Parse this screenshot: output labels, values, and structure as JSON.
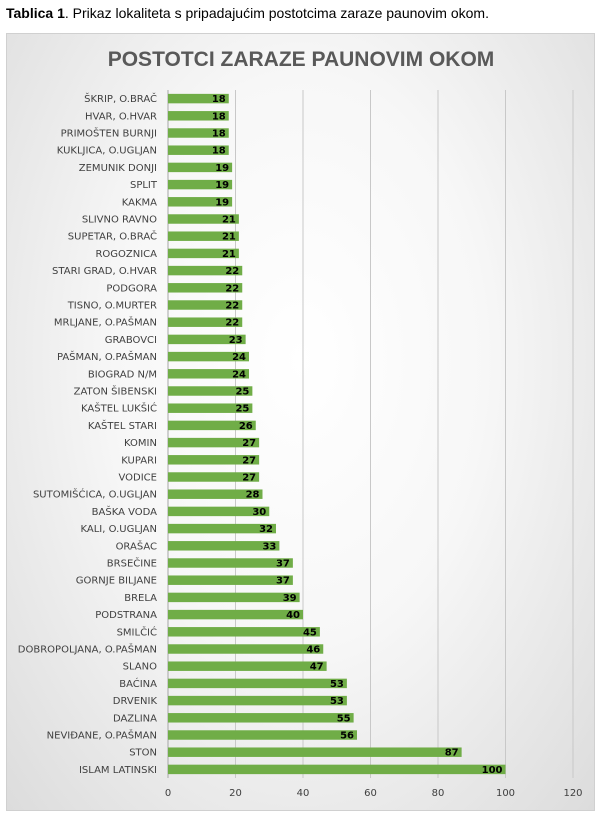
{
  "caption": {
    "bold": "Tablica 1",
    "text": ". Prikaz lokaliteta s pripadajućim postotcima zaraze paunovim okom."
  },
  "chart_data": {
    "type": "bar",
    "orientation": "horizontal",
    "title": "POSTOTCI ZARAZE PAUNOVIM OKOM",
    "xlabel": "",
    "ylabel": "",
    "xlim": [
      0,
      120
    ],
    "ticks": [
      0,
      20,
      40,
      60,
      80,
      100,
      120
    ],
    "grid": true,
    "bar_color": "#70ad47",
    "categories": [
      "ŠKRIP, O.BRAČ",
      "HVAR, O.HVAR",
      "PRIMOŠTEN BURNJI",
      "KUKLJICA, O.UGLJAN",
      "ZEMUNIK DONJI",
      "SPLIT",
      "KAKMA",
      "SLIVNO RAVNO",
      "SUPETAR, O.BRAČ",
      "ROGOZNICA",
      "STARI GRAD, O.HVAR",
      "PODGORA",
      "TISNO, O.MURTER",
      "MRLJANE, O.PAŠMAN",
      "GRABOVCI",
      "PAŠMAN, O.PAŠMAN",
      "BIOGRAD N/M",
      "ZATON ŠIBENSKI",
      "KAŠTEL LUKŠIĆ",
      "KAŠTEL STARI",
      "KOMIN",
      "KUPARI",
      "VODICE",
      "SUTOMIŠĆICA, O.UGLJAN",
      "BAŠKA VODA",
      "KALI, O.UGLJAN",
      "ORAŠAC",
      "BRSEČINE",
      "GORNJE BILJANE",
      "BRELA",
      "PODSTRANA",
      "SMILČIĆ",
      "DOBROPOLJANA, O.PAŠMAN",
      "SLANO",
      "BAĆINA",
      "DRVENIK",
      "DAZLINA",
      "NEVIĐANE, O.PAŠMAN",
      "STON",
      "ISLAM LATINSKI"
    ],
    "values": [
      18,
      18,
      18,
      18,
      19,
      19,
      19,
      21,
      21,
      21,
      22,
      22,
      22,
      22,
      23,
      24,
      24,
      25,
      25,
      26,
      27,
      27,
      27,
      28,
      30,
      32,
      33,
      37,
      37,
      39,
      40,
      45,
      46,
      47,
      53,
      53,
      55,
      56,
      87,
      100
    ]
  }
}
